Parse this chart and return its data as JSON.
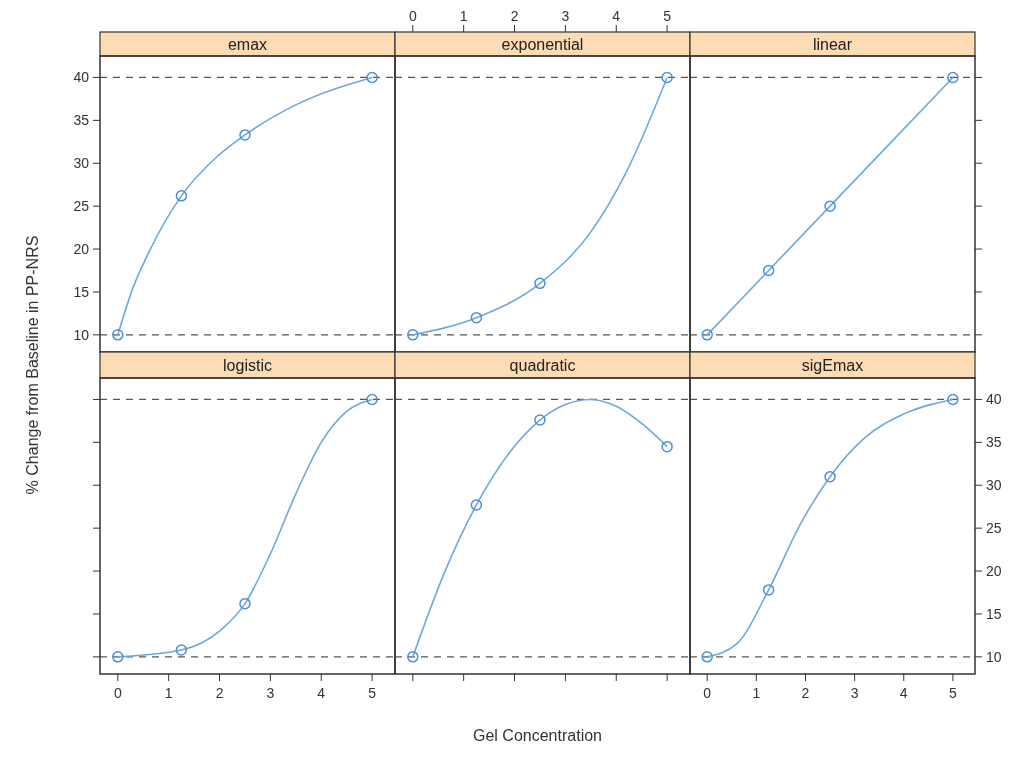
{
  "chart_data": [
    {
      "type": "line",
      "title": "emax",
      "ylabel": "% Change from Baseline in PP-NRS",
      "xlim": [
        -0.35,
        5.45
      ],
      "ylim": [
        8,
        42.5
      ],
      "yticks": [
        10,
        15,
        20,
        25,
        30,
        35,
        40
      ],
      "tick_labels": "y",
      "ref_lines": [
        {
          "axis": "y",
          "value": 10,
          "color": "#555555",
          "line_style": "dashed"
        },
        {
          "axis": "y",
          "value": 40,
          "color": "#555555",
          "line_style": "dashed"
        }
      ],
      "series": [
        {
          "color": "#6fa8dc",
          "marker": "none",
          "x": [
            0,
            0.3,
            0.6,
            1.25,
            1.9,
            2.5,
            3.5,
            5
          ],
          "values": [
            10,
            15.5,
            19.5,
            26.2,
            30.5,
            33.3,
            36.8,
            40
          ]
        },
        {
          "type": "scatter",
          "color": "#4a90d9",
          "marker": "circle",
          "x": [
            0,
            1.25,
            2.5,
            5
          ],
          "values": [
            10,
            26.2,
            33.3,
            40
          ]
        }
      ]
    },
    {
      "type": "line",
      "title": "exponential",
      "xlim": [
        -0.35,
        5.45
      ],
      "ylim": [
        8,
        42.5
      ],
      "xticks": [
        0,
        1,
        2,
        3,
        4,
        5
      ],
      "tick_labels": "x",
      "ref_lines": [
        {
          "axis": "y",
          "value": 10,
          "color": "#555555",
          "line_style": "dashed"
        },
        {
          "axis": "y",
          "value": 40,
          "color": "#555555",
          "line_style": "dashed"
        }
      ],
      "series": [
        {
          "color": "#6fa8dc",
          "marker": "none",
          "x": [
            0,
            1.25,
            2.5,
            3.5,
            4.2,
            5
          ],
          "values": [
            10,
            12,
            16,
            22,
            29,
            40
          ]
        },
        {
          "type": "scatter",
          "color": "#4a90d9",
          "marker": "circle",
          "x": [
            0,
            1.25,
            2.5,
            5
          ],
          "values": [
            10,
            12,
            16,
            40
          ]
        }
      ]
    },
    {
      "type": "line",
      "title": "linear",
      "xlim": [
        -0.35,
        5.45
      ],
      "ylim": [
        8,
        42.5
      ],
      "yticks": [
        {
          "value": 10,
          "label": null
        },
        {
          "value": 15,
          "label": null
        },
        {
          "value": 20,
          "label": null
        },
        {
          "value": 25,
          "label": null
        },
        {
          "value": 30,
          "label": null
        },
        {
          "value": 35,
          "label": null
        },
        {
          "value": 40,
          "label": null
        }
      ],
      "tick_labels": false,
      "ref_lines": [
        {
          "axis": "y",
          "value": 10,
          "color": "#555555",
          "line_style": "dashed"
        },
        {
          "axis": "y",
          "value": 40,
          "color": "#555555",
          "line_style": "dashed"
        }
      ],
      "series": [
        {
          "color": "#6fa8dc",
          "marker": "none",
          "x": [
            0,
            1.25,
            2.5,
            5
          ],
          "values": [
            10,
            17.5,
            25,
            40
          ]
        },
        {
          "type": "scatter",
          "color": "#4a90d9",
          "marker": "circle",
          "x": [
            0,
            1.25,
            2.5,
            5
          ],
          "values": [
            10,
            17.5,
            25,
            40
          ]
        }
      ]
    },
    {
      "type": "line",
      "title": "logistic",
      "xlim": [
        -0.35,
        5.45
      ],
      "ylim": [
        8,
        42.5
      ],
      "xticks": [
        0,
        1,
        2,
        3,
        4,
        5
      ],
      "yticks": [
        {
          "value": 10,
          "label": null
        },
        {
          "value": 15,
          "label": null
        },
        {
          "value": 20,
          "label": null
        },
        {
          "value": 25,
          "label": null
        },
        {
          "value": 30,
          "label": null
        },
        {
          "value": 35,
          "label": null
        },
        {
          "value": 40,
          "label": null
        }
      ],
      "tick_labels": "x",
      "ref_lines": [
        {
          "axis": "y",
          "value": 10,
          "color": "#555555",
          "line_style": "dashed"
        },
        {
          "axis": "y",
          "value": 40,
          "color": "#555555",
          "line_style": "dashed"
        }
      ],
      "series": [
        {
          "color": "#6fa8dc",
          "marker": "none",
          "x": [
            0,
            1.25,
            2,
            2.5,
            3,
            3.5,
            4,
            4.5,
            5
          ],
          "values": [
            10,
            10.8,
            13,
            16.2,
            22,
            29,
            35,
            38.6,
            40
          ]
        },
        {
          "type": "scatter",
          "color": "#4a90d9",
          "marker": "circle",
          "x": [
            0,
            1.25,
            2.5,
            5
          ],
          "values": [
            10,
            10.8,
            16.2,
            40
          ]
        }
      ]
    },
    {
      "type": "line",
      "title": "quadratic",
      "xlabel": "Gel Concentration",
      "xlim": [
        -0.35,
        5.45
      ],
      "ylim": [
        8,
        42.5
      ],
      "xticks": [
        {
          "value": 0,
          "label": null
        },
        {
          "value": 1,
          "label": null
        },
        {
          "value": 2,
          "label": null
        },
        {
          "value": 3,
          "label": null
        },
        {
          "value": 4,
          "label": null
        },
        {
          "value": 5,
          "label": null
        }
      ],
      "tick_labels": false,
      "ref_lines": [
        {
          "axis": "y",
          "value": 10,
          "color": "#555555",
          "line_style": "dashed"
        },
        {
          "axis": "y",
          "value": 40,
          "color": "#555555",
          "line_style": "dashed"
        }
      ],
      "series": [
        {
          "color": "#6fa8dc",
          "marker": "none",
          "x": [
            0,
            0.6,
            1.25,
            1.9,
            2.5,
            3,
            3.5,
            4,
            4.5,
            5
          ],
          "values": [
            10,
            19.5,
            27.7,
            33.8,
            37.6,
            39.4,
            40,
            39.2,
            37.2,
            34.5
          ]
        },
        {
          "type": "scatter",
          "color": "#4a90d9",
          "marker": "circle",
          "x": [
            0,
            1.25,
            2.5,
            5
          ],
          "values": [
            10,
            27.7,
            37.6,
            34.5
          ]
        }
      ]
    },
    {
      "type": "line",
      "title": "sigEmax",
      "xlim": [
        -0.35,
        5.45
      ],
      "ylim": [
        8,
        42.5
      ],
      "xticks": [
        0,
        1,
        2,
        3,
        4,
        5
      ],
      "yticks": [
        10,
        15,
        20,
        25,
        30,
        35,
        40
      ],
      "tick_labels": "xy",
      "ref_lines": [
        {
          "axis": "y",
          "value": 10,
          "color": "#555555",
          "line_style": "dashed"
        },
        {
          "axis": "y",
          "value": 40,
          "color": "#555555",
          "line_style": "dashed"
        }
      ],
      "series": [
        {
          "color": "#6fa8dc",
          "marker": "none",
          "x": [
            0,
            0.6,
            1.25,
            1.9,
            2.5,
            3.2,
            4,
            5
          ],
          "values": [
            10,
            11.5,
            17.8,
            25.5,
            31,
            35.5,
            38.3,
            40
          ]
        },
        {
          "type": "scatter",
          "color": "#4a90d9",
          "marker": "circle",
          "x": [
            0,
            1.25,
            2.5,
            5
          ],
          "values": [
            10,
            17.8,
            31,
            40
          ]
        }
      ]
    }
  ]
}
